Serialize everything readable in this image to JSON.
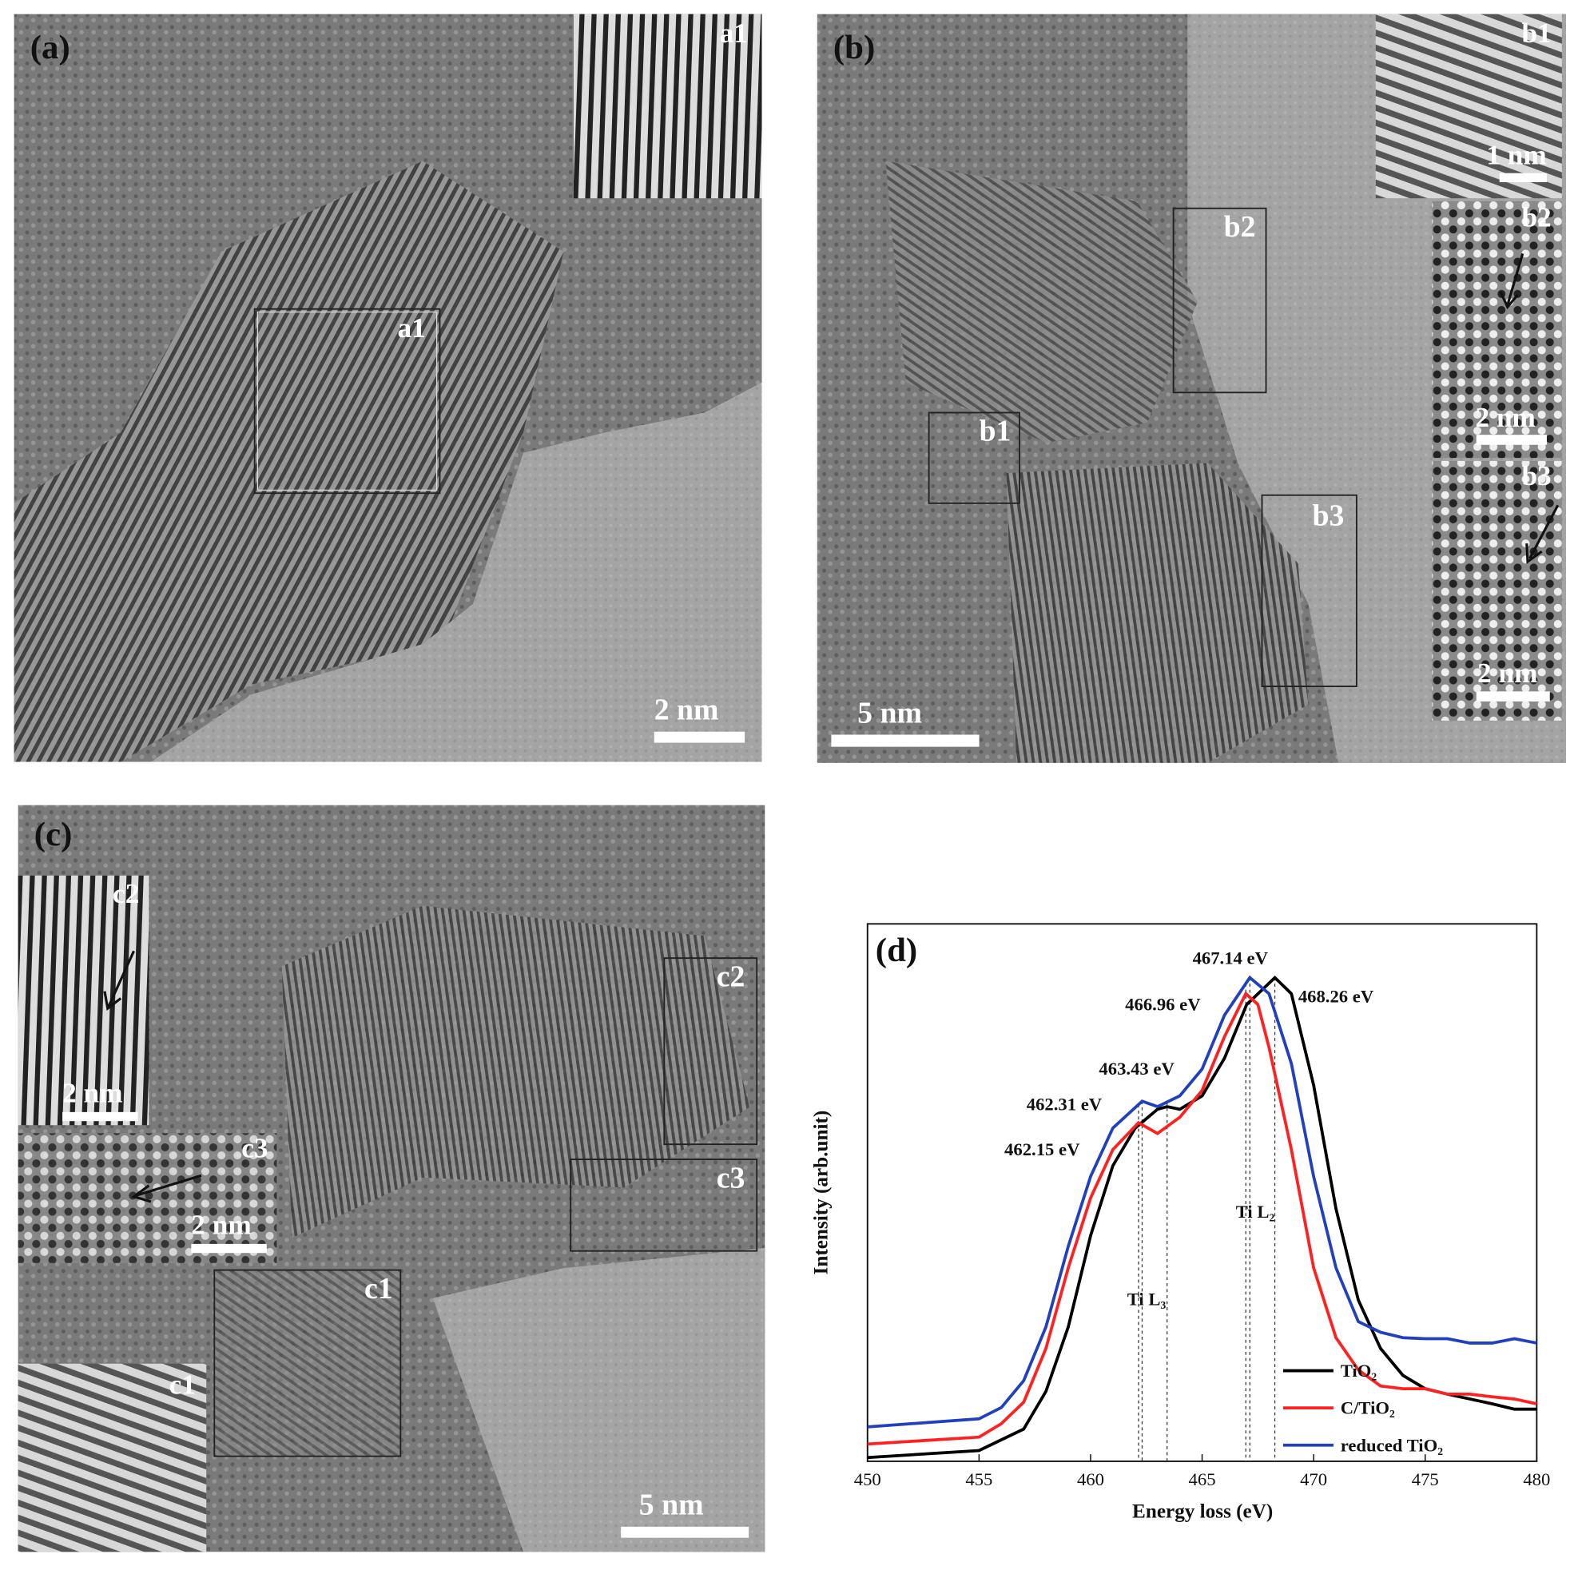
{
  "panels": [
    {
      "label": "(a)",
      "scale_bar": "2 nm",
      "box_labels": [
        "a1"
      ],
      "inset_labels": [
        "a1"
      ],
      "inset_scale_bars": []
    },
    {
      "label": "(b)",
      "scale_bar": "5 nm",
      "box_labels": [
        "b2",
        "b1",
        "b3"
      ],
      "inset_labels": [
        "b1",
        "b2",
        "b3"
      ],
      "inset_scale_bars": [
        "1 nm",
        "2 nm",
        "2 nm"
      ]
    },
    {
      "label": "(c)",
      "scale_bar": "5 nm",
      "box_labels": [
        "c2",
        "c3",
        "c1"
      ],
      "inset_labels": [
        "c2",
        "c3",
        "c1"
      ],
      "inset_scale_bars": [
        "2 nm",
        "2 nm"
      ]
    }
  ],
  "chart_data": {
    "type": "line",
    "label": "(d)",
    "x_label": "Energy loss (eV)",
    "y_label": "Intensity (arb.unit)",
    "xlim": [
      450,
      480
    ],
    "xticks": [
      450,
      455,
      460,
      465,
      470,
      475,
      480
    ],
    "ylim": [
      0,
      1
    ],
    "legend": "lower right",
    "series": [
      {
        "name": "TiO₂",
        "color": "#000000",
        "x": [
          450,
          455,
          457,
          458,
          459,
          460,
          461,
          462,
          463,
          463.43,
          464,
          465,
          466,
          467,
          468.26,
          469,
          470,
          471,
          472,
          473,
          474,
          475,
          476,
          477,
          478,
          479,
          480
        ],
        "values": [
          0.007,
          0.02,
          0.06,
          0.13,
          0.25,
          0.42,
          0.55,
          0.62,
          0.655,
          0.66,
          0.655,
          0.68,
          0.75,
          0.85,
          0.9,
          0.87,
          0.7,
          0.47,
          0.3,
          0.21,
          0.16,
          0.135,
          0.125,
          0.116,
          0.107,
          0.097,
          0.097
        ]
      },
      {
        "name": "C/TiO₂",
        "color": "#ff2020",
        "x": [
          450,
          455,
          456,
          457,
          458,
          459,
          460,
          461,
          462.15,
          463,
          464,
          465,
          466,
          466.96,
          467.5,
          468,
          469,
          470,
          471,
          472,
          473,
          474,
          475,
          476,
          477,
          478,
          479,
          480
        ],
        "values": [
          0.032,
          0.045,
          0.07,
          0.11,
          0.21,
          0.36,
          0.49,
          0.58,
          0.63,
          0.61,
          0.64,
          0.69,
          0.79,
          0.87,
          0.85,
          0.77,
          0.58,
          0.36,
          0.23,
          0.17,
          0.14,
          0.135,
          0.135,
          0.125,
          0.125,
          0.12,
          0.116,
          0.107
        ]
      },
      {
        "name": "reduced TiO₂",
        "color": "#2040c0",
        "x": [
          450,
          455,
          456,
          457,
          458,
          459,
          460,
          461,
          462.31,
          463,
          464,
          465,
          466,
          467.14,
          468,
          469,
          470,
          471,
          472,
          473,
          474,
          475,
          476,
          477,
          478,
          479,
          480
        ],
        "values": [
          0.064,
          0.079,
          0.1,
          0.15,
          0.25,
          0.4,
          0.53,
          0.62,
          0.67,
          0.66,
          0.68,
          0.73,
          0.83,
          0.9,
          0.87,
          0.74,
          0.53,
          0.36,
          0.26,
          0.24,
          0.23,
          0.228,
          0.228,
          0.22,
          0.22,
          0.228,
          0.22
        ]
      }
    ],
    "annotations": [
      {
        "text": "467.14 eV",
        "x": 467.14
      },
      {
        "text": "466.96 eV",
        "x": 466.96
      },
      {
        "text": "468.26 eV",
        "x": 468.26
      },
      {
        "text": "463.43 eV",
        "x": 463.43
      },
      {
        "text": "462.31 eV",
        "x": 462.31
      },
      {
        "text": "462.15 eV",
        "x": 462.15
      },
      {
        "text": "Ti L₃"
      },
      {
        "text": "Ti L₂"
      }
    ]
  }
}
